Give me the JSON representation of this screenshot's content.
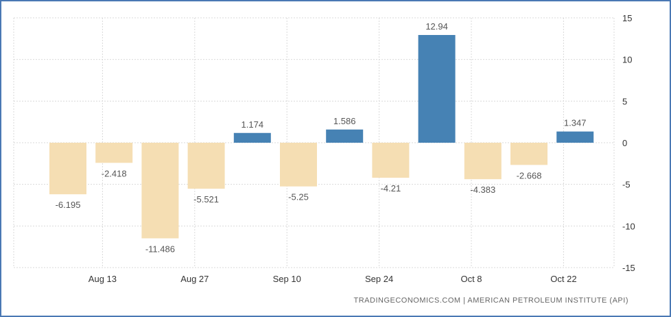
{
  "source": "TRADINGECONOMICS.COM  |  AMERICAN PETROLEUM INSTITUTE (API)",
  "colors": {
    "positive": "#4682b4",
    "negative": "#f5deb3",
    "frame": "#4a78b4"
  },
  "chart_data": {
    "type": "bar",
    "title": "",
    "xlabel": "",
    "ylabel": "",
    "ylim": [
      -15,
      15
    ],
    "yticks": [
      15,
      10,
      5,
      0,
      -5,
      -10,
      -15
    ],
    "y_axis_side": "right",
    "grid": true,
    "categories": [
      "",
      "",
      "",
      "",
      "",
      "",
      "",
      "",
      "",
      "",
      "",
      ""
    ],
    "values": [
      -6.195,
      -2.418,
      -11.486,
      -5.521,
      1.174,
      -5.25,
      1.586,
      -4.21,
      12.94,
      -4.383,
      -2.668,
      1.347
    ],
    "labels": [
      "-6.195",
      "-2.418",
      "-11.486",
      "-5.521",
      "1.174",
      "-5.25",
      "1.586",
      "-4.21",
      "12.94",
      "-4.383",
      "-2.668",
      "1.347"
    ],
    "xticks": [
      {
        "label": "Aug 13",
        "index": 0.75
      },
      {
        "label": "Aug 27",
        "index": 2.75
      },
      {
        "label": "Sep 10",
        "index": 4.75
      },
      {
        "label": "Sep 24",
        "index": 6.75
      },
      {
        "label": "Oct 8",
        "index": 8.75
      },
      {
        "label": "Oct 22",
        "index": 10.75
      }
    ]
  }
}
